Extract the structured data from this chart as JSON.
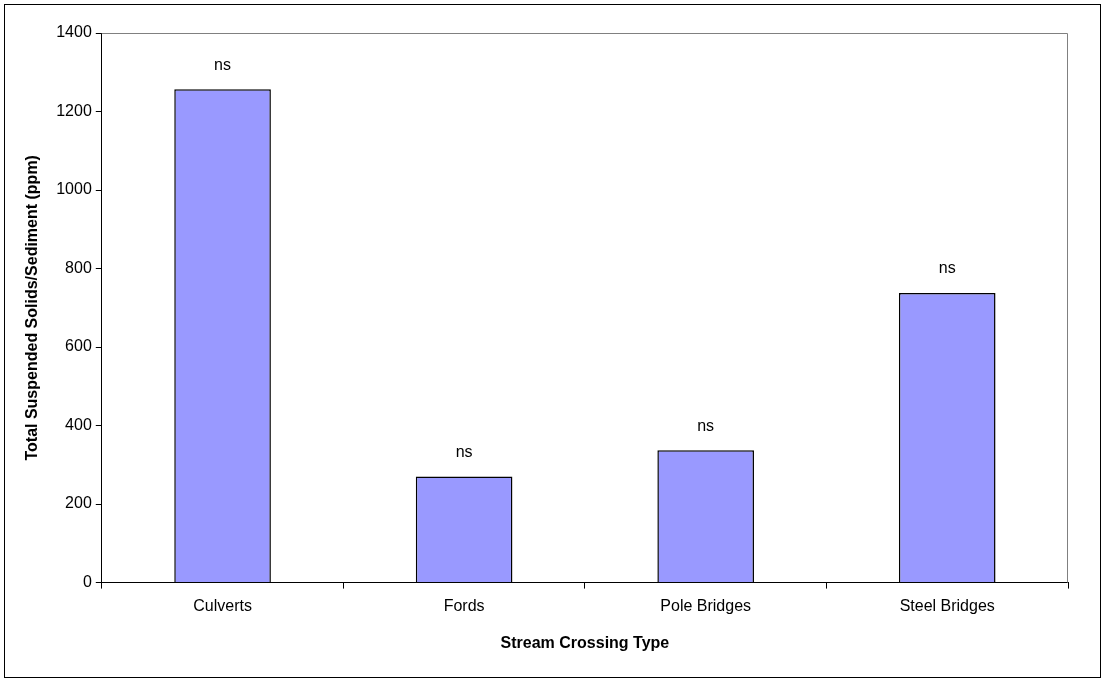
{
  "chart_data": {
    "type": "bar",
    "xlabel": "Stream Crossing Type",
    "ylabel": "Total Suspended Solids/Sediment (ppm)",
    "categories": [
      "Culverts",
      "Fords",
      "Pole Bridges",
      "Steel Bridges"
    ],
    "values": [
      1257,
      270,
      337,
      738
    ],
    "color": "#9999ff",
    "value_labels": [
      "ns",
      "ns",
      "ns",
      "ns"
    ],
    "ylim": [
      0,
      1400
    ],
    "yticks": [
      0,
      200,
      400,
      600,
      800,
      1000,
      1200,
      1400
    ],
    "grid": false,
    "legend": false
  }
}
